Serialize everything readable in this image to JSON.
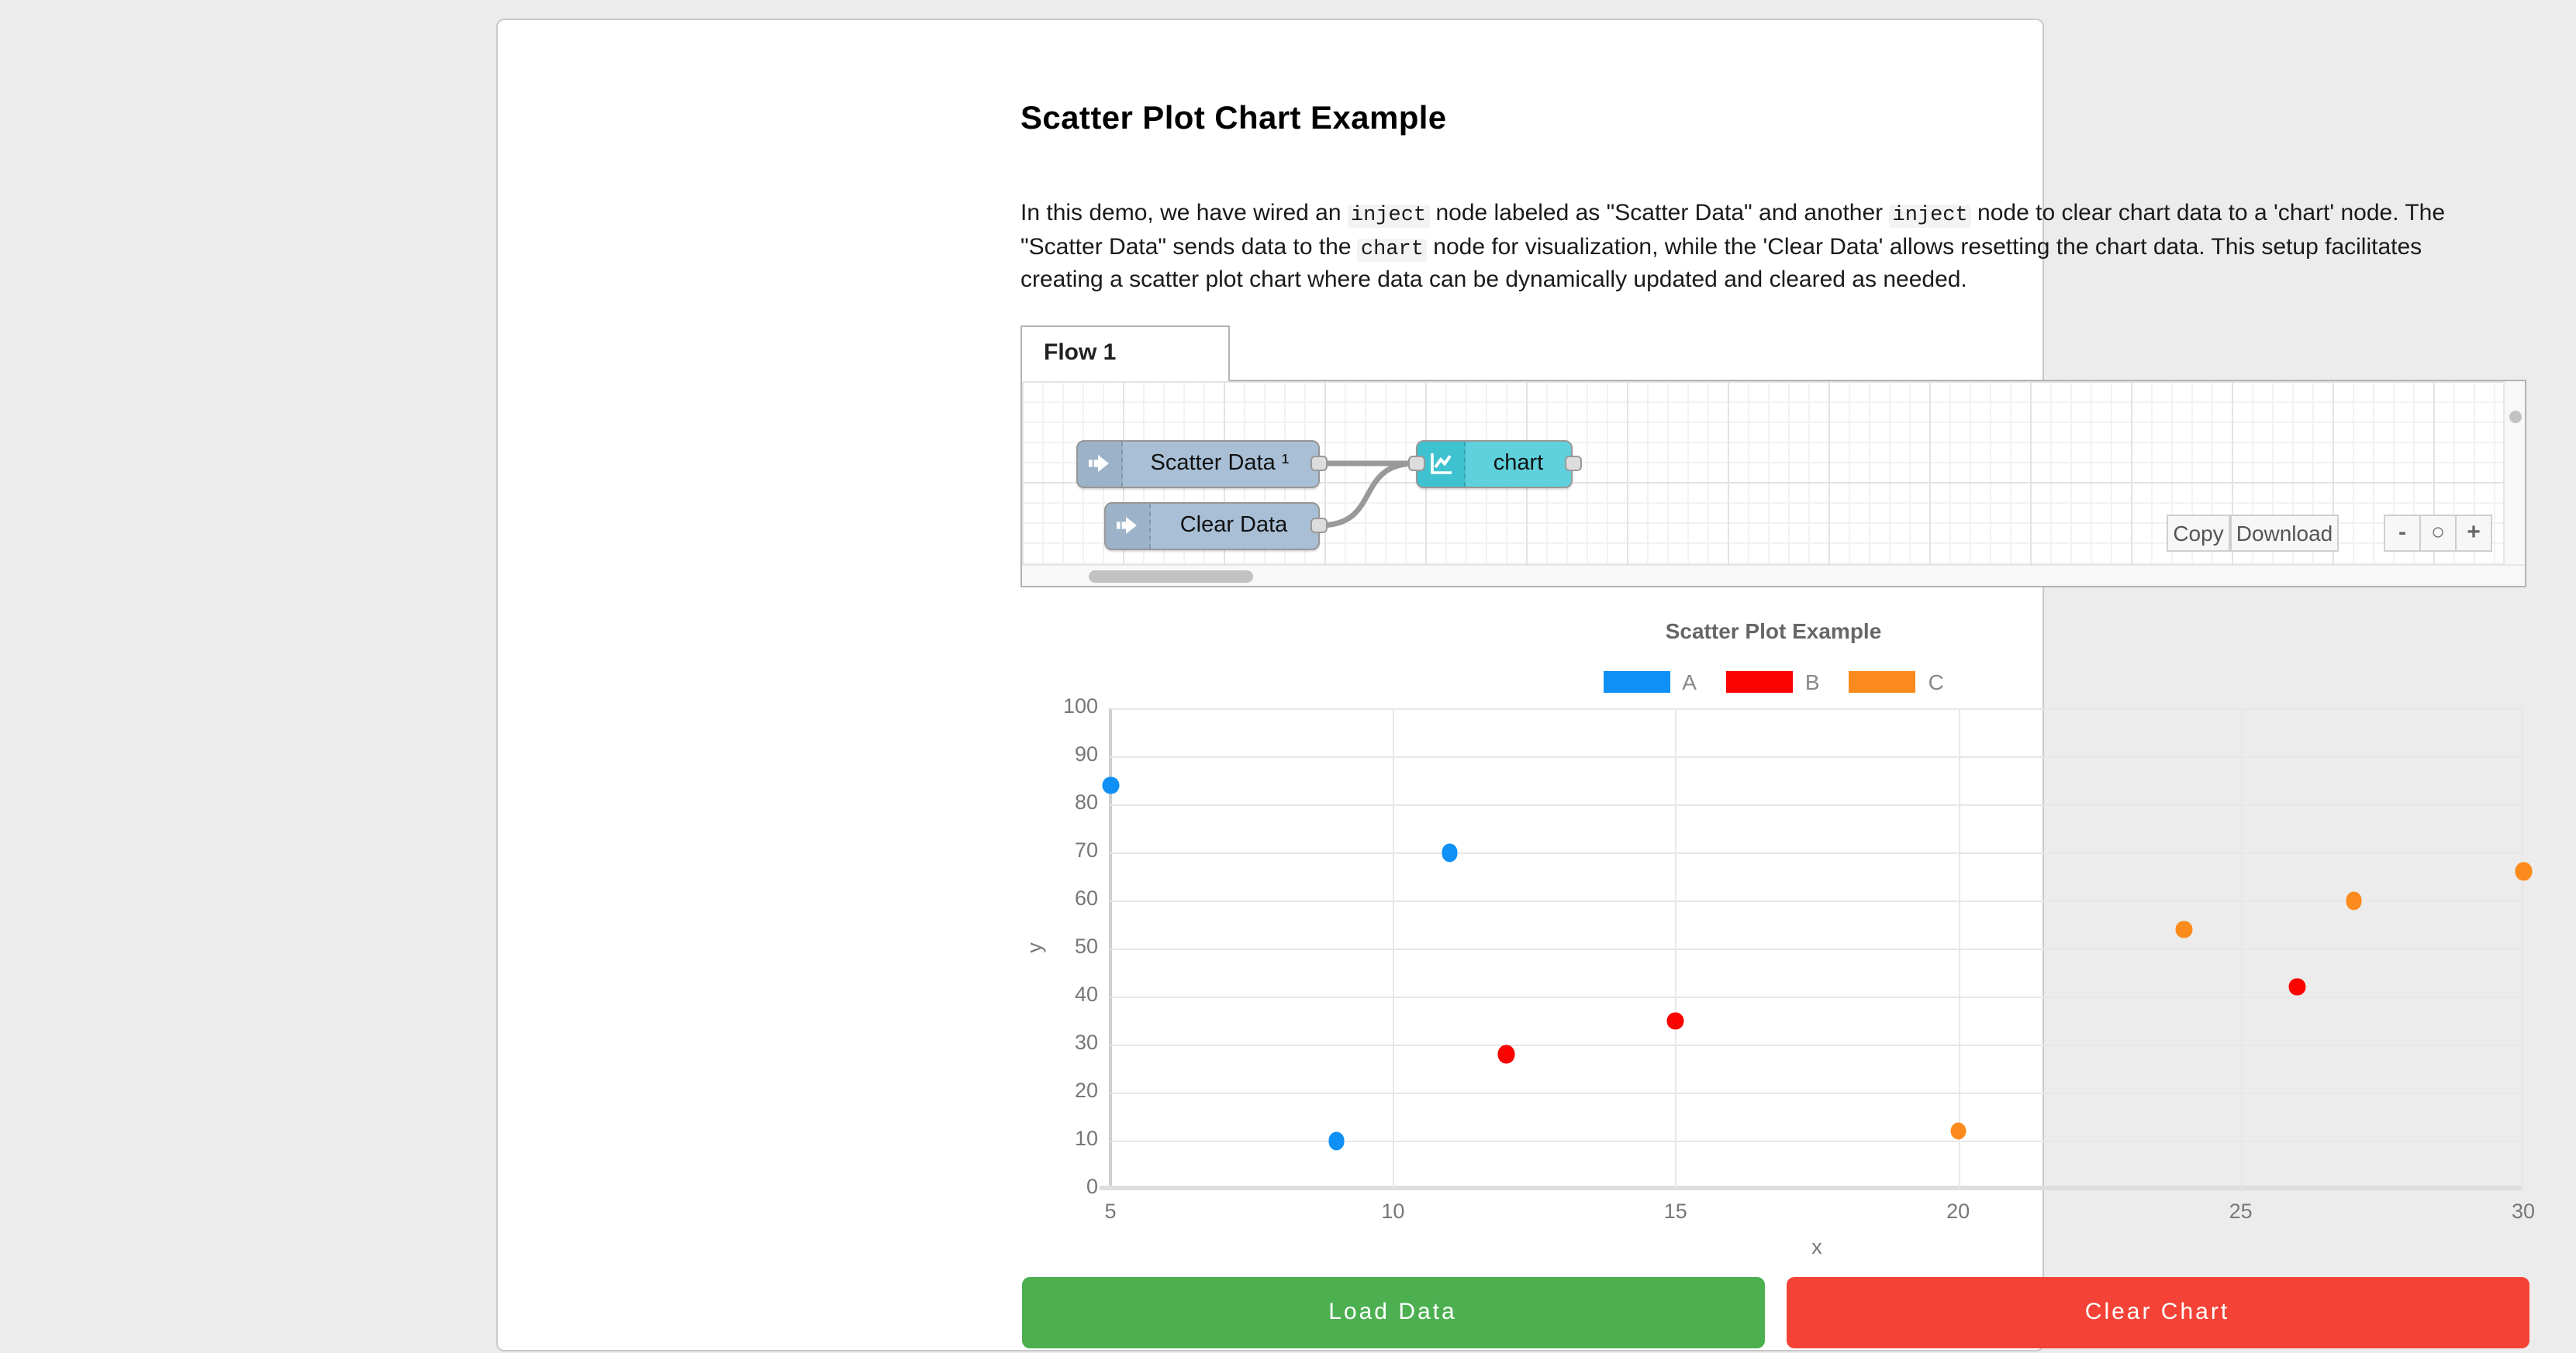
{
  "page": {
    "heading": "Scatter Plot Chart Example",
    "description_segments": [
      {
        "type": "text",
        "value": "In this demo, we have wired an "
      },
      {
        "type": "code",
        "value": "inject"
      },
      {
        "type": "text",
        "value": " node labeled as \"Scatter Data\" and another "
      },
      {
        "type": "code",
        "value": "inject"
      },
      {
        "type": "text",
        "value": " node to clear chart data to a 'chart' node. The \"Scatter Data\" sends data to the "
      },
      {
        "type": "code",
        "value": "chart"
      },
      {
        "type": "text",
        "value": " node for visualization, while the 'Clear Data' allows resetting the chart data. This setup facilitates creating a scatter plot chart where data can be dynamically updated and cleared as needed."
      }
    ]
  },
  "flow_editor": {
    "tab_label": "Flow 1",
    "nodes": {
      "scatter_inject_label": "Scatter Data ¹",
      "clear_inject_label": "Clear Data",
      "chart_node_label": "chart"
    },
    "node_colors": {
      "inject_body": "#a9bfd6",
      "inject_icon": "#9cb2c8",
      "chart_body": "#5fd1dc",
      "chart_icon": "#3ec2d0",
      "wire": "#999999"
    },
    "toolbar": {
      "copy_label": "Copy",
      "download_label": "Download",
      "zoom_out_label": "-",
      "zoom_reset_label": "○",
      "zoom_in_label": "+"
    }
  },
  "chart_data": {
    "type": "scatter",
    "title": "Scatter Plot Example",
    "xlabel": "x",
    "ylabel": "y",
    "xlim": [
      5,
      30
    ],
    "ylim": [
      0,
      100
    ],
    "x_ticks": [
      5,
      10,
      15,
      20,
      25,
      30
    ],
    "y_ticks": [
      0,
      10,
      20,
      30,
      40,
      50,
      60,
      70,
      80,
      90,
      100
    ],
    "grid": true,
    "legend_position": "top",
    "series": [
      {
        "name": "A",
        "color": "#0f90f6",
        "points": [
          [
            5,
            84
          ],
          [
            9,
            10
          ],
          [
            11,
            70
          ]
        ]
      },
      {
        "name": "B",
        "color": "#fa0400",
        "points": [
          [
            12,
            28
          ],
          [
            15,
            35
          ],
          [
            26,
            42
          ]
        ]
      },
      {
        "name": "C",
        "color": "#fb8b1d",
        "points": [
          [
            20,
            12
          ],
          [
            24,
            54
          ],
          [
            27,
            60
          ],
          [
            30,
            66
          ]
        ]
      }
    ]
  },
  "actions": {
    "load_label": "Load Data",
    "clear_label": "Clear Chart",
    "load_color": "#4caf50",
    "clear_color": "#f44336"
  }
}
